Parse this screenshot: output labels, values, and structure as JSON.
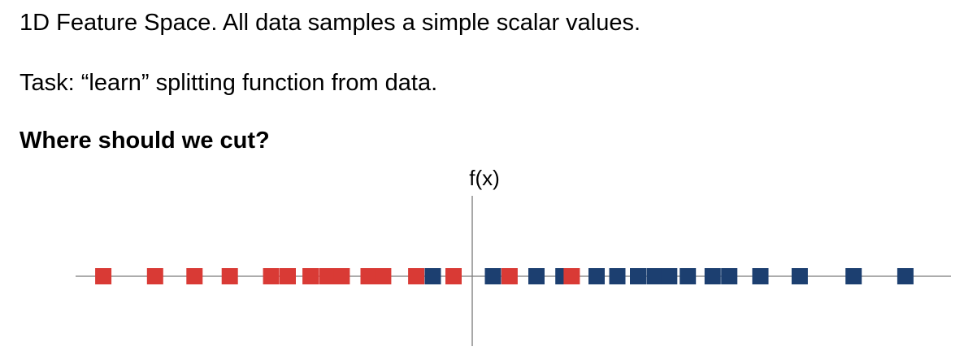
{
  "slide": {
    "line1": "1D Feature Space. All data samples a simple scalar values.",
    "line2": "Task: “learn” splitting function from data.",
    "line3": "Where should we cut?"
  },
  "diagram": {
    "axis_label": "f(x)",
    "colors": {
      "class_red": "#d93a35",
      "class_blue": "#1c3f70",
      "axis": "#7a7a7a"
    },
    "samples": [
      {
        "value": -8.9,
        "class": "red"
      },
      {
        "value": -7.65,
        "class": "red"
      },
      {
        "value": -6.7,
        "class": "red"
      },
      {
        "value": -5.85,
        "class": "red"
      },
      {
        "value": -4.85,
        "class": "red"
      },
      {
        "value": -4.45,
        "class": "red"
      },
      {
        "value": -3.9,
        "class": "red"
      },
      {
        "value": -3.5,
        "class": "red"
      },
      {
        "value": -3.15,
        "class": "red"
      },
      {
        "value": -2.5,
        "class": "red"
      },
      {
        "value": -2.15,
        "class": "red"
      },
      {
        "value": -1.35,
        "class": "red"
      },
      {
        "value": -0.95,
        "class": "blue"
      },
      {
        "value": -0.45,
        "class": "red"
      },
      {
        "value": 0.5,
        "class": "blue"
      },
      {
        "value": 0.9,
        "class": "red"
      },
      {
        "value": 1.55,
        "class": "blue"
      },
      {
        "value": 2.2,
        "class": "blue"
      },
      {
        "value": 2.4,
        "class": "red"
      },
      {
        "value": 3.0,
        "class": "blue"
      },
      {
        "value": 3.5,
        "class": "blue"
      },
      {
        "value": 4.0,
        "class": "blue"
      },
      {
        "value": 4.4,
        "class": "blue"
      },
      {
        "value": 4.75,
        "class": "blue"
      },
      {
        "value": 5.2,
        "class": "blue"
      },
      {
        "value": 5.8,
        "class": "blue"
      },
      {
        "value": 6.2,
        "class": "blue"
      },
      {
        "value": 6.95,
        "class": "blue"
      },
      {
        "value": 7.9,
        "class": "blue"
      },
      {
        "value": 9.2,
        "class": "blue"
      },
      {
        "value": 10.45,
        "class": "blue"
      }
    ]
  }
}
